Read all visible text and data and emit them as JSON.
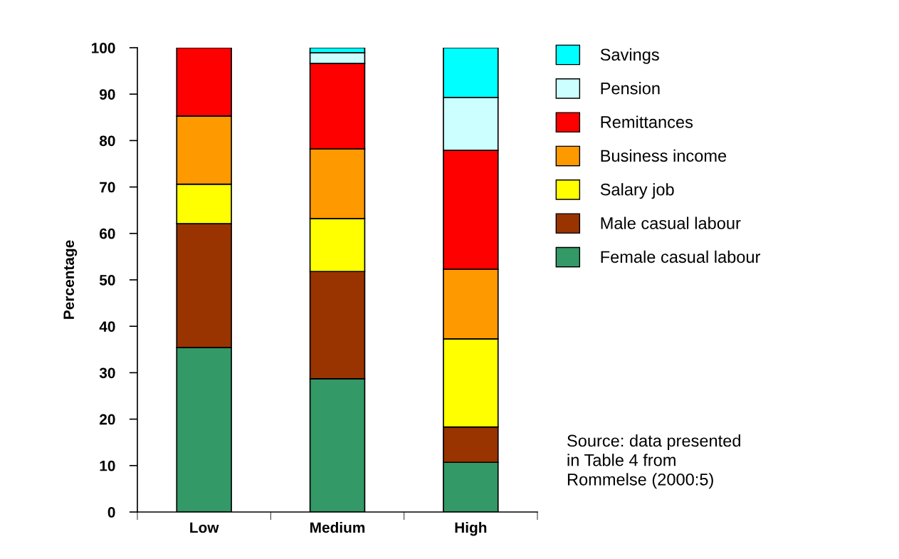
{
  "chart_data": {
    "type": "bar",
    "stacked": true,
    "ylabel": "Percentage",
    "categories": [
      "Low",
      "Medium",
      "High"
    ],
    "series": [
      {
        "name": "Female casual labour",
        "color": "#339966",
        "values": [
          35.4,
          28.7,
          10.7
        ]
      },
      {
        "name": "Male casual labour",
        "color": "#993300",
        "values": [
          26.7,
          23.1,
          7.6
        ]
      },
      {
        "name": "Salary job",
        "color": "#ffff00",
        "values": [
          8.5,
          11.4,
          19.0
        ]
      },
      {
        "name": "Business income",
        "color": "#ff9900",
        "values": [
          14.7,
          15.0,
          15.0
        ]
      },
      {
        "name": "Remittances",
        "color": "#ff0000",
        "values": [
          14.7,
          18.4,
          25.6
        ]
      },
      {
        "name": "Pension",
        "color": "#ccffff",
        "values": [
          null,
          2.3,
          11.4
        ]
      },
      {
        "name": "Savings",
        "color": "#00ffff",
        "values": [
          null,
          1.1,
          10.7
        ]
      }
    ],
    "ylim": [
      0,
      100
    ],
    "yticks": [
      0,
      10,
      20,
      30,
      40,
      50,
      60,
      70,
      80,
      90,
      100
    ],
    "grid": false,
    "legend": "right",
    "annotations": [
      "Source: data presented\nin Table 4 from\nRommelse (2000:5)"
    ]
  }
}
